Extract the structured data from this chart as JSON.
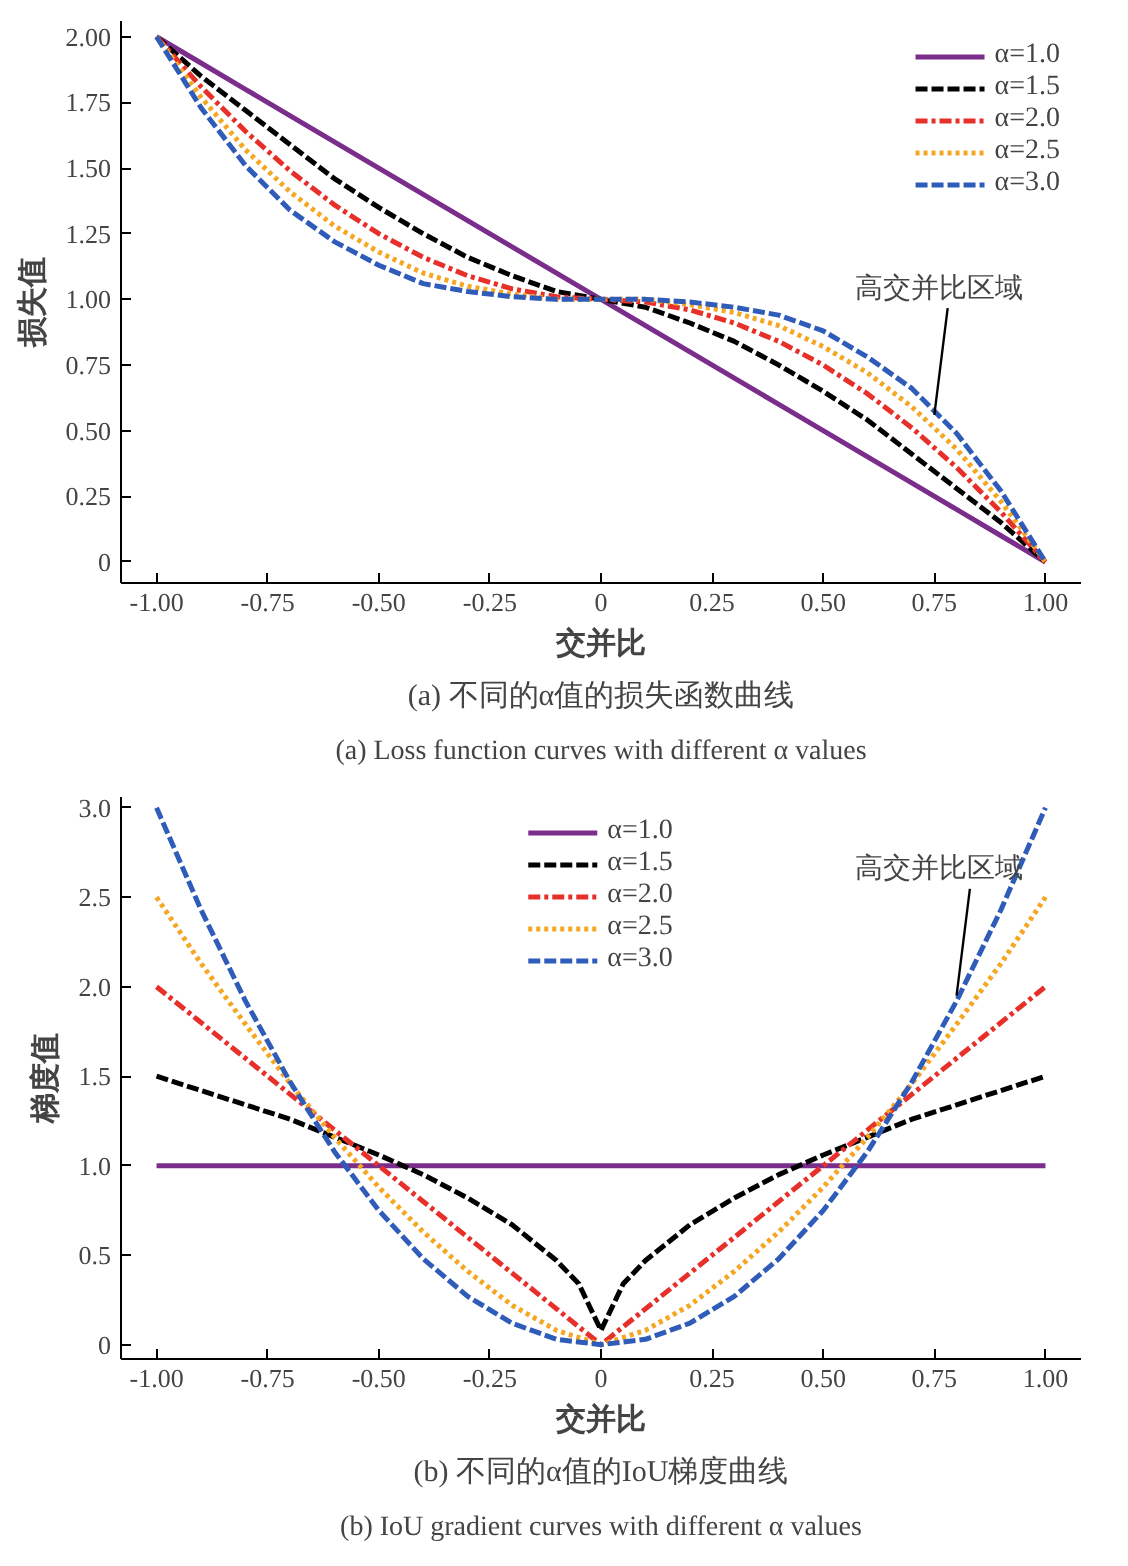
{
  "chart_data": [
    {
      "type": "line",
      "title": "(a) 不同的α值的损失函数曲线",
      "subtitle": "(a) Loss function curves with different α values",
      "xlabel": "交并比",
      "ylabel": "损失值",
      "x": [
        -1,
        -0.9,
        -0.8,
        -0.7,
        -0.6,
        -0.5,
        -0.4,
        -0.3,
        -0.2,
        -0.1,
        0,
        0.1,
        0.2,
        0.3,
        0.4,
        0.5,
        0.6,
        0.7,
        0.8,
        0.9,
        1
      ],
      "xlim": [
        -1.08,
        1.08
      ],
      "ylim": [
        -0.08,
        2.06
      ],
      "xticks": [
        {
          "value": -1,
          "label": "-1.00"
        },
        {
          "value": -0.75,
          "label": "-0.75"
        },
        {
          "value": -0.5,
          "label": "-0.50"
        },
        {
          "value": -0.25,
          "label": "-0.25"
        },
        {
          "value": 0,
          "label": "0"
        },
        {
          "value": 0.25,
          "label": "0.25"
        },
        {
          "value": 0.5,
          "label": "0.50"
        },
        {
          "value": 0.75,
          "label": "0.75"
        },
        {
          "value": 1,
          "label": "1.00"
        }
      ],
      "yticks": [
        {
          "value": 0,
          "label": "0"
        },
        {
          "value": 0.25,
          "label": "0.25"
        },
        {
          "value": 0.5,
          "label": "0.50"
        },
        {
          "value": 0.75,
          "label": "0.75"
        },
        {
          "value": 1,
          "label": "1.00"
        },
        {
          "value": 1.25,
          "label": "1.25"
        },
        {
          "value": 1.5,
          "label": "1.50"
        },
        {
          "value": 1.75,
          "label": "1.75"
        },
        {
          "value": 2,
          "label": "2.00"
        }
      ],
      "grid": false,
      "legend": "top right",
      "annotations": [
        {
          "text": "高交并比区域",
          "x": 0.75,
          "y": 0.56
        }
      ],
      "series": [
        {
          "name": "α=1.0",
          "color": "#7b2d8b",
          "line_style": "solid",
          "values": [
            2,
            1.9,
            1.8,
            1.7,
            1.6,
            1.5,
            1.4,
            1.3,
            1.2,
            1.1,
            1,
            0.9,
            0.8,
            0.7,
            0.6,
            0.5,
            0.4,
            0.3,
            0.2,
            0.1,
            0
          ]
        },
        {
          "name": "α=1.5",
          "color": "#000000",
          "line_style": "dashed",
          "values": [
            2,
            1.85,
            1.72,
            1.59,
            1.46,
            1.35,
            1.25,
            1.16,
            1.09,
            1.03,
            1,
            0.97,
            0.91,
            0.84,
            0.75,
            0.65,
            0.54,
            0.41,
            0.28,
            0.15,
            0
          ]
        },
        {
          "name": "α=2.0",
          "color": "#e8302a",
          "line_style": "dashdot",
          "values": [
            2,
            1.81,
            1.64,
            1.49,
            1.36,
            1.25,
            1.16,
            1.09,
            1.04,
            1.01,
            1,
            0.99,
            0.96,
            0.91,
            0.84,
            0.75,
            0.64,
            0.51,
            0.36,
            0.19,
            0
          ]
        },
        {
          "name": "α=2.5",
          "color": "#f5a623",
          "line_style": "dotted",
          "values": [
            2,
            1.77,
            1.57,
            1.41,
            1.28,
            1.18,
            1.1,
            1.05,
            1.02,
            1.0,
            1,
            1.0,
            0.98,
            0.95,
            0.9,
            0.82,
            0.72,
            0.59,
            0.43,
            0.23,
            0
          ]
        },
        {
          "name": "α=3.0",
          "color": "#2f5cb8",
          "line_style": "dashed",
          "values": [
            2,
            1.73,
            1.51,
            1.34,
            1.22,
            1.13,
            1.06,
            1.03,
            1.01,
            1.0,
            1,
            1.0,
            0.99,
            0.97,
            0.94,
            0.88,
            0.78,
            0.66,
            0.49,
            0.27,
            0
          ]
        }
      ]
    },
    {
      "type": "line",
      "title": "(b) 不同的α值的IoU梯度曲线",
      "subtitle": "(b) IoU gradient curves with different α values",
      "xlabel": "交并比",
      "ylabel": "梯度值",
      "x": [
        -1,
        -0.9,
        -0.8,
        -0.7,
        -0.6,
        -0.5,
        -0.4,
        -0.3,
        -0.2,
        -0.1,
        0,
        0.1,
        0.2,
        0.3,
        0.4,
        0.5,
        0.6,
        0.7,
        0.8,
        0.9,
        1
      ],
      "xlim": [
        -1.08,
        1.08
      ],
      "ylim": [
        -0.08,
        3.06
      ],
      "xticks": [
        {
          "value": -1,
          "label": "-1.00"
        },
        {
          "value": -0.75,
          "label": "-0.75"
        },
        {
          "value": -0.5,
          "label": "-0.50"
        },
        {
          "value": -0.25,
          "label": "-0.25"
        },
        {
          "value": 0,
          "label": "0"
        },
        {
          "value": 0.25,
          "label": "0.25"
        },
        {
          "value": 0.5,
          "label": "0.50"
        },
        {
          "value": 0.75,
          "label": "0.75"
        },
        {
          "value": 1,
          "label": "1.00"
        }
      ],
      "yticks": [
        {
          "value": 0,
          "label": "0"
        },
        {
          "value": 0.5,
          "label": "0.5"
        },
        {
          "value": 1,
          "label": "1.0"
        },
        {
          "value": 1.5,
          "label": "1.5"
        },
        {
          "value": 2,
          "label": "2.0"
        },
        {
          "value": 2.5,
          "label": "2.5"
        },
        {
          "value": 3,
          "label": "3.0"
        }
      ],
      "grid": false,
      "legend": "top",
      "annotations": [
        {
          "text": "高交并比区域",
          "x": 0.8,
          "y": 1.95
        }
      ],
      "series": [
        {
          "name": "α=1.0",
          "color": "#7b2d8b",
          "line_style": "solid",
          "values": [
            1,
            1,
            1,
            1,
            1,
            1,
            1,
            1,
            1,
            1,
            1,
            1,
            1,
            1,
            1,
            1,
            1,
            1,
            1,
            1,
            1
          ]
        },
        {
          "name": "α=1.5",
          "color": "#000000",
          "line_style": "dashed",
          "x": [
            -1,
            -0.9,
            -0.8,
            -0.7,
            -0.6,
            -0.5,
            -0.4,
            -0.3,
            -0.2,
            -0.1,
            -0.05,
            0,
            0.05,
            0.1,
            0.2,
            0.3,
            0.4,
            0.5,
            0.6,
            0.7,
            0.8,
            0.9,
            1
          ],
          "values": [
            1.5,
            1.42,
            1.34,
            1.26,
            1.16,
            1.06,
            0.95,
            0.82,
            0.67,
            0.47,
            0.34,
            0.08,
            0.34,
            0.47,
            0.67,
            0.82,
            0.95,
            1.06,
            1.16,
            1.26,
            1.34,
            1.42,
            1.5
          ]
        },
        {
          "name": "α=2.0",
          "color": "#e8302a",
          "line_style": "dashdot",
          "values": [
            2,
            1.8,
            1.6,
            1.4,
            1.2,
            1,
            0.8,
            0.6,
            0.4,
            0.2,
            0,
            0.2,
            0.4,
            0.6,
            0.8,
            1,
            1.2,
            1.4,
            1.6,
            1.8,
            2
          ]
        },
        {
          "name": "α=2.5",
          "color": "#f5a623",
          "line_style": "dotted",
          "values": [
            2.5,
            2.13,
            1.79,
            1.46,
            1.16,
            0.88,
            0.63,
            0.41,
            0.22,
            0.08,
            0,
            0.08,
            0.22,
            0.41,
            0.63,
            0.88,
            1.16,
            1.46,
            1.79,
            2.13,
            2.5
          ]
        },
        {
          "name": "α=3.0",
          "color": "#2f5cb8",
          "line_style": "dashed",
          "values": [
            3,
            2.43,
            1.92,
            1.47,
            1.08,
            0.75,
            0.48,
            0.27,
            0.12,
            0.03,
            0,
            0.03,
            0.12,
            0.27,
            0.48,
            0.75,
            1.08,
            1.47,
            1.92,
            2.43,
            3
          ]
        }
      ]
    }
  ]
}
